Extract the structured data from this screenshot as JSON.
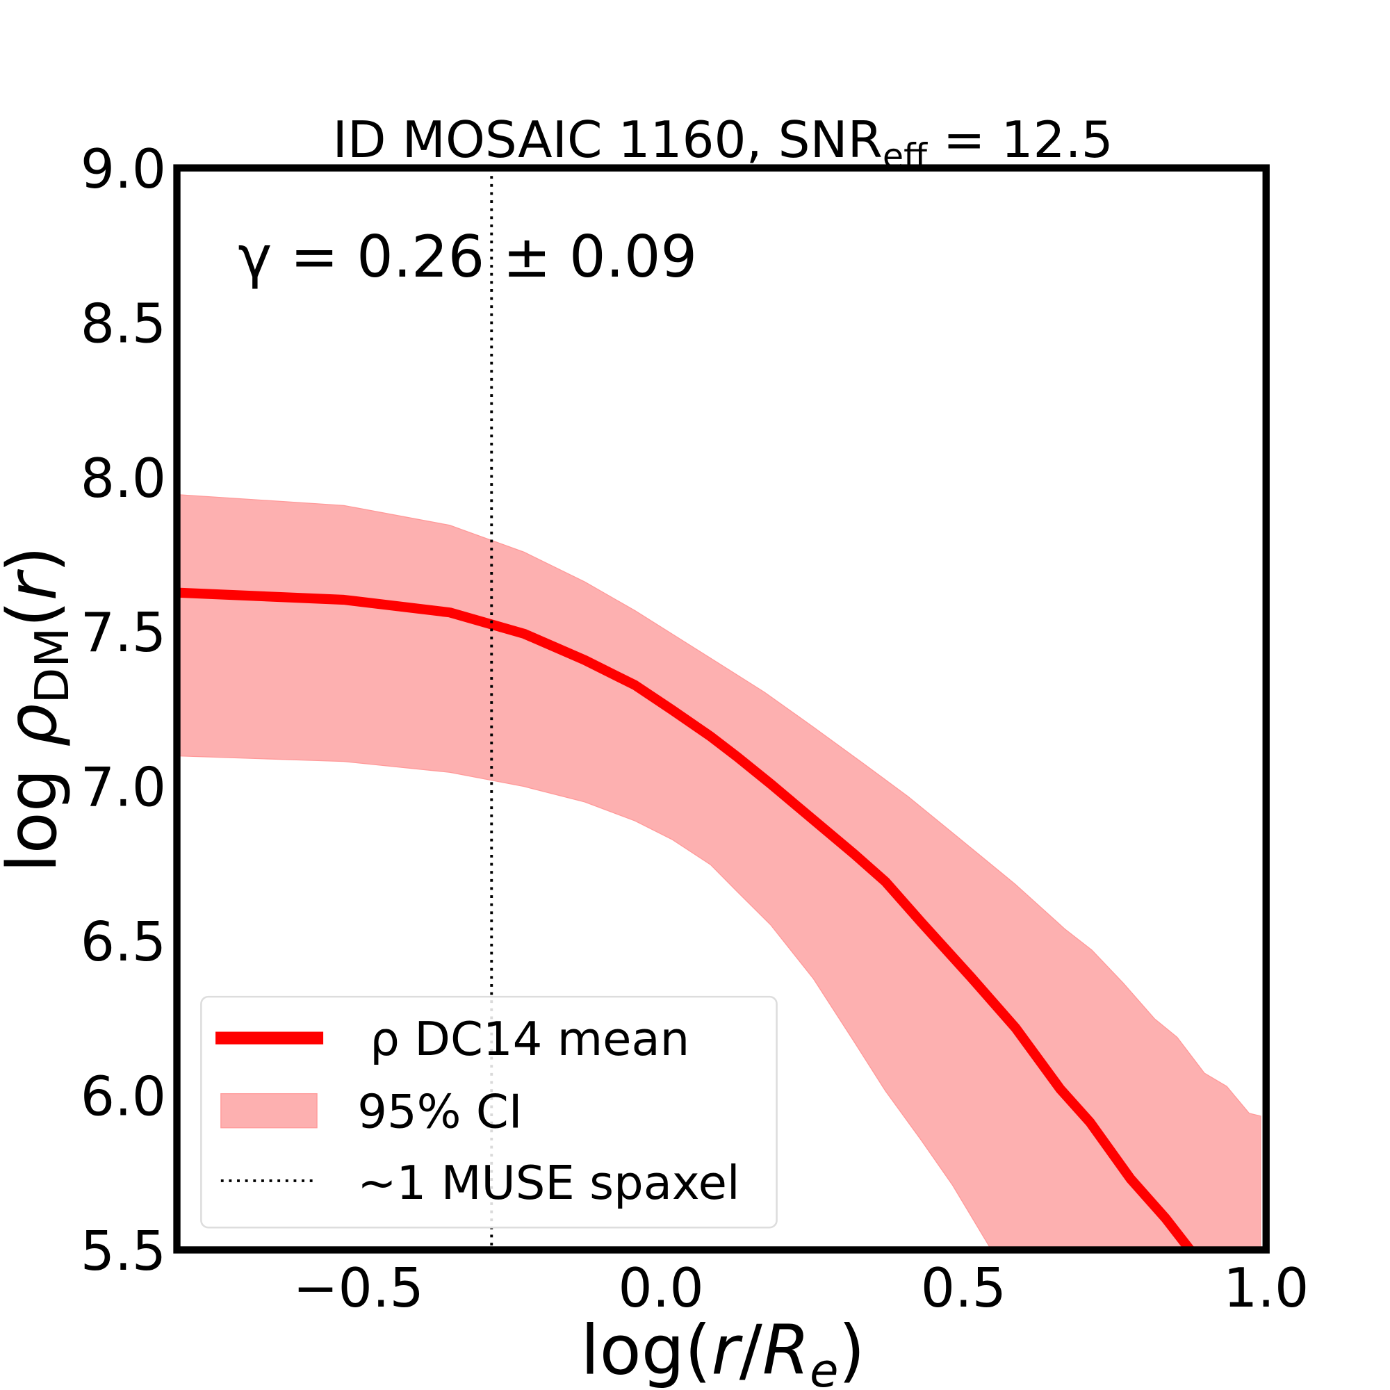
{
  "chart_data": {
    "type": "line",
    "title": "ID MOSAIC 1160, SNR_eff = 12.5",
    "title_parts": {
      "main": "ID MOSAIC 1160, SNR",
      "sub": "eff",
      "tail": " = 12.5"
    },
    "annotation": "γ = 0.26 ± 0.09",
    "xlabel": "log(r/R_e)",
    "xlabel_parts": {
      "main": "log(",
      "r": "r",
      "slash": "/",
      "R": "R",
      "sub": "e",
      "close": ")"
    },
    "ylabel": "log ρ_DM(r)",
    "ylabel_parts": {
      "main": "log ",
      "rho": "ρ",
      "sub": "DM",
      "tail": "(",
      "r": "r",
      "close": ")"
    },
    "xlim": [
      -0.8,
      1.0
    ],
    "ylim": [
      5.5,
      9.0
    ],
    "xticks": [
      -0.5,
      0.0,
      0.5,
      1.0
    ],
    "xtick_labels": [
      "−0.5",
      "0.0",
      "0.5",
      "1.0"
    ],
    "yticks": [
      5.5,
      6.0,
      6.5,
      7.0,
      7.5,
      8.0,
      8.5,
      9.0
    ],
    "ytick_labels": [
      "5.5",
      "6.0",
      "6.5",
      "7.0",
      "7.5",
      "8.0",
      "8.5",
      "9.0"
    ],
    "grid": false,
    "legend_position": "lower-left",
    "series": [
      {
        "name": "ρ DC14 mean",
        "kind": "line",
        "color": "#ff0000",
        "x": [
          -0.798,
          -0.524,
          -0.349,
          -0.226,
          -0.126,
          -0.043,
          0.019,
          0.082,
          0.126,
          0.181,
          0.252,
          0.319,
          0.371,
          0.43,
          0.512,
          0.586,
          0.66,
          0.709,
          0.776,
          0.834,
          0.88
        ],
        "y": [
          7.626,
          7.603,
          7.562,
          7.493,
          7.408,
          7.327,
          7.246,
          7.161,
          7.095,
          7.008,
          6.891,
          6.781,
          6.691,
          6.56,
          6.383,
          6.218,
          6.02,
          5.913,
          5.73,
          5.602,
          5.486
        ]
      },
      {
        "name": "95% CI",
        "kind": "band",
        "color": "#fdb0b0",
        "upper": {
          "x": [
            -0.798,
            -0.524,
            -0.349,
            -0.226,
            -0.126,
            -0.043,
            0.082,
            0.171,
            0.252,
            0.334,
            0.408,
            0.49,
            0.586,
            0.668,
            0.712,
            0.764,
            0.816,
            0.853,
            0.898,
            0.935,
            0.972,
            0.991
          ],
          "y": [
            7.943,
            7.908,
            7.844,
            7.757,
            7.661,
            7.568,
            7.414,
            7.304,
            7.191,
            7.074,
            6.967,
            6.836,
            6.682,
            6.537,
            6.47,
            6.363,
            6.247,
            6.188,
            6.072,
            6.029,
            5.942,
            5.933
          ]
        },
        "lower": {
          "x": [
            -0.798,
            -0.524,
            -0.349,
            -0.226,
            -0.126,
            -0.043,
            0.019,
            0.082,
            0.126,
            0.181,
            0.252,
            0.319,
            0.371,
            0.43,
            0.482,
            0.546
          ],
          "y": [
            7.098,
            7.08,
            7.045,
            6.999,
            6.949,
            6.888,
            6.827,
            6.746,
            6.659,
            6.552,
            6.377,
            6.174,
            6.014,
            5.855,
            5.709,
            5.5
          ]
        }
      },
      {
        "name": "~1 MUSE spaxel",
        "kind": "vline",
        "color": "#000000",
        "x": -0.28
      }
    ]
  }
}
